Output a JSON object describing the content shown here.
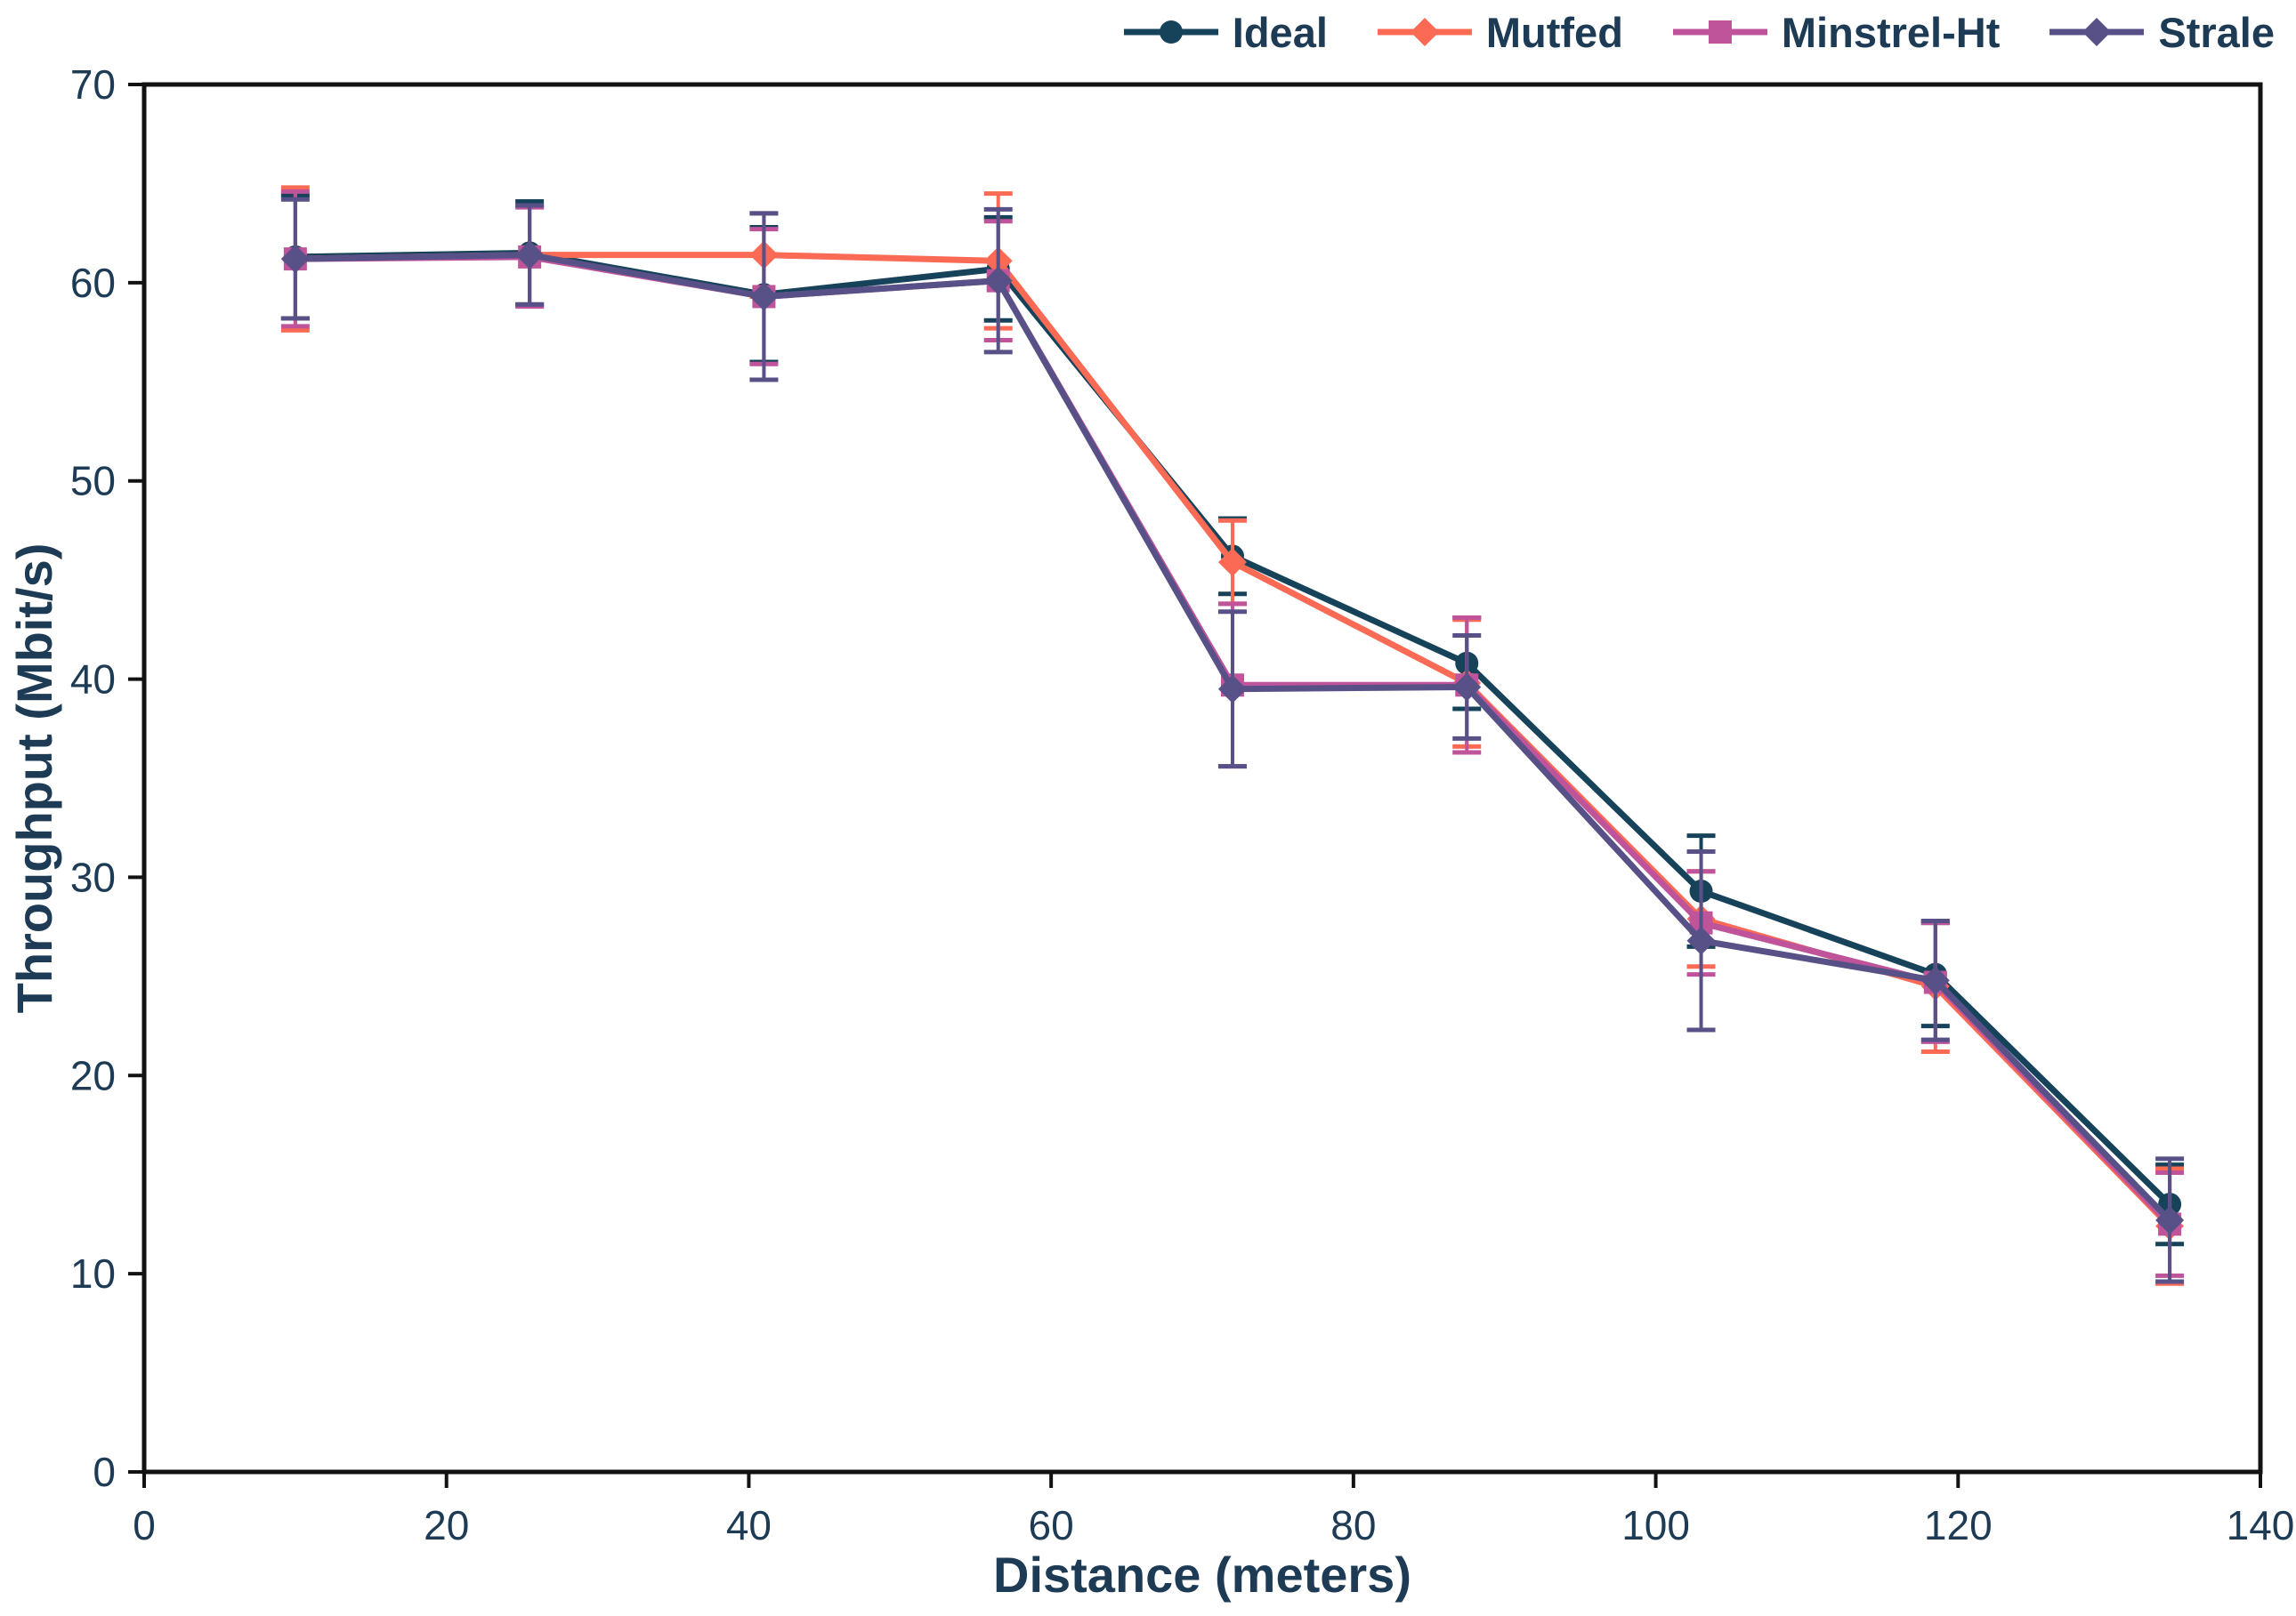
{
  "chart_data": {
    "type": "line",
    "title": "",
    "xlabel": "Distance (meters)",
    "ylabel": "Throughput (Mbit/s)",
    "xlim": [
      0,
      140
    ],
    "ylim": [
      0,
      70
    ],
    "xticks": [
      0,
      20,
      40,
      60,
      80,
      100,
      120,
      140
    ],
    "yticks": [
      0,
      10,
      20,
      30,
      40,
      50,
      60,
      70
    ],
    "grid": false,
    "legend_position": "top-right",
    "error_bars": true,
    "x": [
      10,
      25.5,
      41,
      56.5,
      72,
      87.5,
      103,
      118.5,
      134
    ],
    "series": [
      {
        "name": "Ideal",
        "color": "#17435a",
        "marker": "circle",
        "values": [
          61.3,
          61.5,
          59.4,
          60.7,
          46.2,
          40.8,
          29.3,
          25.1,
          13.5
        ],
        "yerr": [
          3.1,
          2.6,
          3.4,
          2.6,
          1.9,
          2.3,
          2.8,
          2.6,
          2.0
        ]
      },
      {
        "name": "Mutfed",
        "color": "#fb6a55",
        "marker": "diamond",
        "values": [
          61.2,
          61.4,
          61.4,
          61.1,
          45.9,
          39.8,
          27.9,
          24.5,
          12.4
        ],
        "yerr": [
          3.6,
          2.5,
          2.1,
          3.4,
          2.1,
          3.2,
          2.4,
          3.3,
          2.9
        ]
      },
      {
        "name": "Minstrel-Ht",
        "color": "#bf549b",
        "marker": "square",
        "values": [
          61.2,
          61.3,
          59.3,
          60.1,
          39.7,
          39.7,
          27.7,
          24.7,
          12.5
        ],
        "yerr": [
          3.4,
          2.5,
          3.4,
          3.0,
          4.1,
          3.4,
          2.6,
          3.0,
          2.6
        ]
      },
      {
        "name": "Strale",
        "color": "#585187",
        "marker": "diamond",
        "values": [
          61.2,
          61.4,
          59.3,
          60.1,
          39.5,
          39.6,
          26.8,
          24.8,
          12.7
        ],
        "yerr": [
          3.0,
          2.5,
          4.2,
          3.6,
          3.9,
          2.6,
          4.5,
          3.0,
          3.1
        ]
      }
    ]
  },
  "style": {
    "axis_text_color": "#1e3b55",
    "spine_color": "#121212",
    "background": "#ffffff"
  }
}
